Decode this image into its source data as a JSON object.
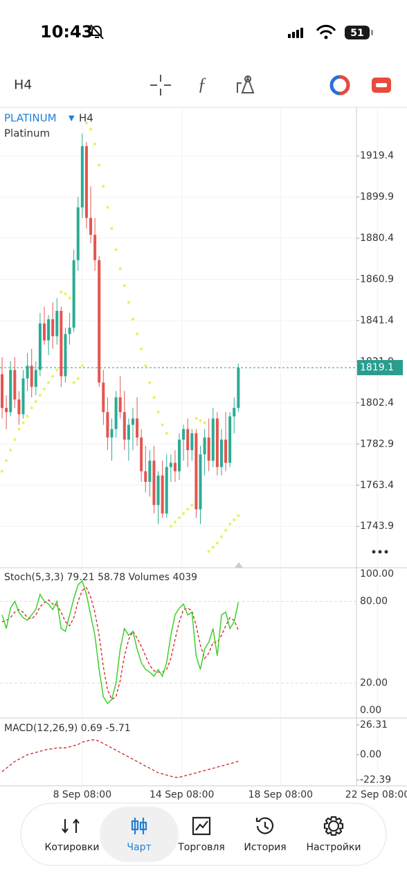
{
  "status": {
    "time": "10:43",
    "battery": "51"
  },
  "toolbar": {
    "timeframe": "H4"
  },
  "chart_data": {
    "type": "candlestick",
    "symbol": "PLATINUM",
    "timeframe": "H4",
    "description": "Platinum",
    "up_color": "#2bab94",
    "down_color": "#e35550",
    "candles": [
      [
        1816,
        1824,
        1795,
        1800
      ],
      [
        1800,
        1806,
        1790,
        1798
      ],
      [
        1798,
        1822,
        1796,
        1818
      ],
      [
        1818,
        1824,
        1800,
        1804
      ],
      [
        1804,
        1808,
        1792,
        1797
      ],
      [
        1797,
        1818,
        1795,
        1814
      ],
      [
        1814,
        1826,
        1808,
        1820
      ],
      [
        1820,
        1828,
        1805,
        1810
      ],
      [
        1810,
        1822,
        1806,
        1818
      ],
      [
        1818,
        1845,
        1815,
        1840
      ],
      [
        1840,
        1848,
        1830,
        1832
      ],
      [
        1832,
        1844,
        1825,
        1842
      ],
      [
        1842,
        1850,
        1828,
        1834
      ],
      [
        1834,
        1852,
        1830,
        1846
      ],
      [
        1846,
        1848,
        1810,
        1815
      ],
      [
        1815,
        1838,
        1812,
        1835
      ],
      [
        1835,
        1845,
        1830,
        1838
      ],
      [
        1838,
        1875,
        1836,
        1870
      ],
      [
        1870,
        1900,
        1865,
        1895
      ],
      [
        1895,
        1930,
        1890,
        1924
      ],
      [
        1924,
        1926,
        1885,
        1890
      ],
      [
        1890,
        1905,
        1878,
        1882
      ],
      [
        1882,
        1890,
        1865,
        1870
      ],
      [
        1870,
        1872,
        1810,
        1812
      ],
      [
        1812,
        1818,
        1792,
        1798
      ],
      [
        1798,
        1805,
        1780,
        1786
      ],
      [
        1786,
        1795,
        1775,
        1790
      ],
      [
        1790,
        1808,
        1786,
        1805
      ],
      [
        1805,
        1815,
        1795,
        1798
      ],
      [
        1798,
        1808,
        1780,
        1785
      ],
      [
        1785,
        1795,
        1775,
        1792
      ],
      [
        1792,
        1800,
        1780,
        1795
      ],
      [
        1795,
        1805,
        1782,
        1786
      ],
      [
        1786,
        1790,
        1765,
        1770
      ],
      [
        1770,
        1782,
        1760,
        1765
      ],
      [
        1765,
        1780,
        1758,
        1775
      ],
      [
        1775,
        1782,
        1750,
        1754
      ],
      [
        1754,
        1770,
        1745,
        1768
      ],
      [
        1768,
        1775,
        1748,
        1750
      ],
      [
        1750,
        1778,
        1748,
        1772
      ],
      [
        1772,
        1778,
        1765,
        1774
      ],
      [
        1774,
        1780,
        1765,
        1770
      ],
      [
        1770,
        1788,
        1766,
        1785
      ],
      [
        1785,
        1792,
        1775,
        1790
      ],
      [
        1790,
        1795,
        1772,
        1780
      ],
      [
        1780,
        1790,
        1775,
        1788
      ],
      [
        1788,
        1790,
        1748,
        1752
      ],
      [
        1752,
        1782,
        1745,
        1778
      ],
      [
        1778,
        1790,
        1768,
        1786
      ],
      [
        1786,
        1795,
        1770,
        1775
      ],
      [
        1775,
        1800,
        1772,
        1795
      ],
      [
        1795,
        1798,
        1768,
        1772
      ],
      [
        1772,
        1790,
        1768,
        1785
      ],
      [
        1785,
        1798,
        1770,
        1774
      ],
      [
        1774,
        1798,
        1772,
        1796
      ],
      [
        1796,
        1805,
        1788,
        1800
      ],
      [
        1800,
        1821,
        1798,
        1819.1
      ]
    ],
    "sar": {
      "color": "#e6f25a",
      "values": [
        1770,
        1775,
        1780,
        1785,
        1790,
        1793,
        1796,
        1800,
        1803,
        1806,
        1809,
        1812,
        1815,
        1818,
        1855,
        1854,
        1852,
        1812,
        1814,
        1820,
        1935,
        1932,
        1925,
        1915,
        1905,
        1895,
        1885,
        1875,
        1866,
        1858,
        1850,
        1842,
        1835,
        1828,
        1820,
        1812,
        1805,
        1798,
        1792,
        1788,
        1744,
        1746,
        1748,
        1750,
        1752,
        1754,
        1795,
        1794,
        1793,
        1732,
        1734,
        1736,
        1739,
        1742,
        1745,
        1747,
        1749
      ]
    },
    "current_price": 1819.1,
    "ylim": [
      1724.3,
      1942.4
    ],
    "yticks": [
      1919.4,
      1899.9,
      1880.4,
      1860.9,
      1841.4,
      1821.9,
      1802.4,
      1782.9,
      1763.4,
      1743.9
    ],
    "xlim": [
      -0.5,
      84
    ],
    "xticks": [
      {
        "value": 19,
        "label": "8 Sep 08:00"
      },
      {
        "value": 42.6,
        "label": "14 Sep 08:00"
      },
      {
        "value": 66,
        "label": "18 Sep 08:00"
      },
      {
        "value": 89,
        "label": "22 Sep 08:00"
      }
    ],
    "stoch": {
      "label": "Stoch(5,3,3)",
      "volumes_label": "Volumes",
      "volume": 4039,
      "k_color": "#3ecf2a",
      "d_color": "#d42020",
      "k": [
        70,
        60,
        75,
        80,
        72,
        68,
        66,
        70,
        74,
        85,
        80,
        78,
        74,
        80,
        60,
        58,
        70,
        82,
        92,
        95,
        85,
        70,
        55,
        30,
        10,
        5,
        8,
        20,
        45,
        60,
        55,
        58,
        45,
        35,
        30,
        28,
        25,
        30,
        25,
        35,
        55,
        70,
        75,
        78,
        70,
        72,
        40,
        30,
        45,
        50,
        60,
        40,
        70,
        72,
        60,
        65,
        79.21
      ],
      "d": [
        65,
        66,
        68,
        72,
        74,
        72,
        68,
        67,
        70,
        76,
        79,
        81,
        78,
        77,
        72,
        65,
        62,
        68,
        80,
        88,
        90,
        83,
        72,
        55,
        32,
        15,
        8,
        10,
        22,
        40,
        52,
        58,
        53,
        47,
        40,
        33,
        29,
        28,
        28,
        30,
        38,
        52,
        65,
        74,
        75,
        73,
        62,
        48,
        38,
        42,
        50,
        50,
        55,
        62,
        68,
        66,
        58.78
      ],
      "ylim": [
        -5.6,
        104.6
      ],
      "yticks": [
        {
          "value": 100,
          "label": "100.00"
        },
        {
          "value": 80,
          "label": "80.00"
        },
        {
          "value": 20,
          "label": "20.00"
        },
        {
          "value": 0,
          "label": "0.00"
        }
      ]
    },
    "macd": {
      "label": "MACD(12,26,9)",
      "value": 0.69,
      "signal_color": "#d42020",
      "signal": [
        -15,
        -12,
        -9,
        -6,
        -4,
        -2,
        0,
        1,
        2,
        3,
        4,
        5,
        5,
        6,
        6,
        6,
        7,
        8,
        9,
        11,
        12,
        13,
        13,
        12,
        10,
        8,
        6,
        4,
        2,
        0,
        -2,
        -4,
        -6,
        -8,
        -10,
        -12,
        -14,
        -16,
        -17,
        -18,
        -19,
        -20,
        -20,
        -19,
        -18,
        -17,
        -16,
        -15,
        -14,
        -13,
        -12,
        -11,
        -10,
        -9,
        -8,
        -7,
        -5.71
      ],
      "ylim": [
        -27.5,
        32.4
      ],
      "yticks": [
        26.31,
        {
          "value": 0,
          "label": "0.00"
        },
        -22.39
      ]
    }
  },
  "nav": {
    "items": [
      "Котировки",
      "Чарт",
      "Торговля",
      "История",
      "Настройки"
    ],
    "active": 1
  }
}
